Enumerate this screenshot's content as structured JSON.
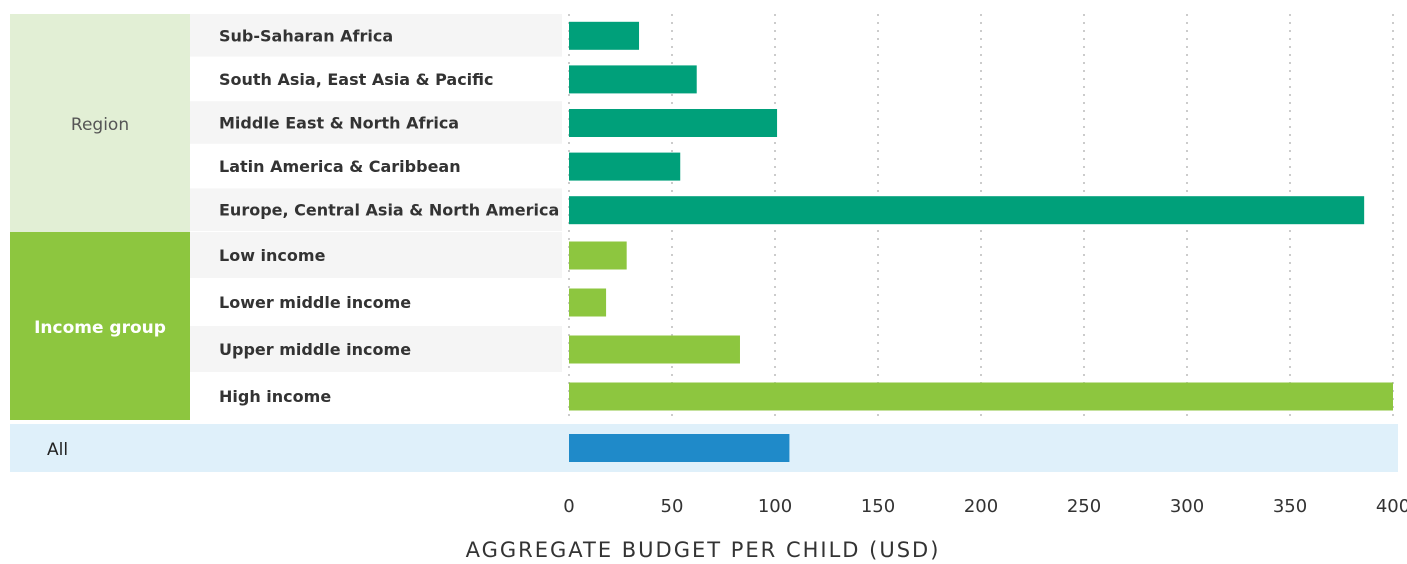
{
  "chart_data": {
    "type": "grouped-bar-horizontal",
    "x_label": "AGGREGATE BUDGET PER CHILD (USD)",
    "xlim": [
      0,
      400
    ],
    "xticks": [
      0,
      50,
      100,
      150,
      200,
      250,
      300,
      350,
      400
    ],
    "grid": true,
    "groups": [
      {
        "name": "Region",
        "color": "#00a07a",
        "categories": [
          "Sub-Saharan Africa",
          "South Asia, East Asia & Pacific",
          "Middle East & North Africa",
          "Latin America & Caribbean",
          "Europe, Central Asia & North America"
        ],
        "values": [
          34,
          62,
          101,
          54,
          386
        ]
      },
      {
        "name": "Income group",
        "color": "#8dc63f",
        "categories": [
          "Low income",
          "Lower middle income",
          "Upper middle income",
          "High income"
        ],
        "values": [
          28,
          18,
          83,
          400
        ]
      },
      {
        "name": "All",
        "color": "#1f8ac9",
        "categories": [
          null
        ],
        "values": [
          107
        ]
      }
    ]
  }
}
